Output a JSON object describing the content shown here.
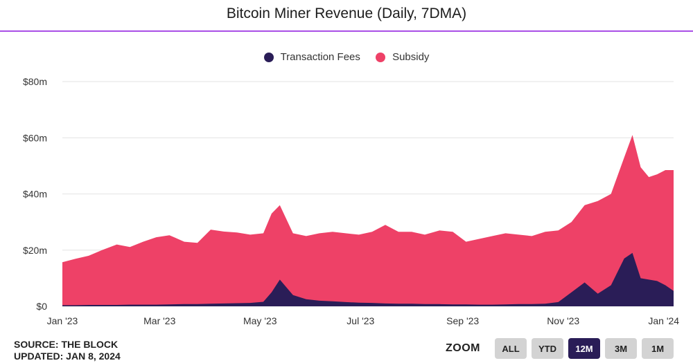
{
  "title": "Bitcoin Miner Revenue (Daily, 7DMA)",
  "footer": {
    "source": "SOURCE: THE BLOCK",
    "updated": "UPDATED: JAN 8, 2024"
  },
  "zoom": {
    "label": "ZOOM",
    "buttons": [
      "ALL",
      "YTD",
      "12M",
      "3M",
      "1M"
    ],
    "active": "12M"
  },
  "colors": {
    "fees": "#2a1d57",
    "subsidy": "#ee4167",
    "grid": "#e3e3e3",
    "title_rule": "#a94ee6"
  },
  "chart_data": {
    "type": "area",
    "stacked": true,
    "title": "Bitcoin Miner Revenue (Daily, 7DMA)",
    "x_ticks": [
      "Jan '23",
      "Mar '23",
      "May '23",
      "Jul '23",
      "Sep '23",
      "Nov '23",
      "Jan '24"
    ],
    "y_ticks": [
      "$0",
      "$20m",
      "$40m",
      "$60m",
      "$80m"
    ],
    "ylim": [
      0,
      80
    ],
    "y_unit": "USD millions",
    "grid": true,
    "legend_position": "top-center",
    "dates": [
      "2023-01-01",
      "2023-01-09",
      "2023-01-17",
      "2023-01-25",
      "2023-02-03",
      "2023-02-11",
      "2023-02-19",
      "2023-02-27",
      "2023-03-07",
      "2023-03-16",
      "2023-03-24",
      "2023-04-01",
      "2023-04-09",
      "2023-04-17",
      "2023-04-25",
      "2023-05-03",
      "2023-05-08",
      "2023-05-13",
      "2023-05-21",
      "2023-05-29",
      "2023-06-06",
      "2023-06-14",
      "2023-06-22",
      "2023-06-30",
      "2023-07-08",
      "2023-07-16",
      "2023-07-24",
      "2023-08-01",
      "2023-08-09",
      "2023-08-18",
      "2023-08-26",
      "2023-09-03",
      "2023-09-11",
      "2023-09-19",
      "2023-09-27",
      "2023-10-05",
      "2023-10-13",
      "2023-10-21",
      "2023-10-29",
      "2023-11-06",
      "2023-11-14",
      "2023-11-22",
      "2023-11-30",
      "2023-12-08",
      "2023-12-13",
      "2023-12-18",
      "2023-12-23",
      "2023-12-28",
      "2024-01-02",
      "2024-01-07"
    ],
    "series": [
      {
        "name": "Transaction Fees",
        "values": [
          0.4,
          0.4,
          0.5,
          0.5,
          0.5,
          0.6,
          0.6,
          0.6,
          0.7,
          0.8,
          0.8,
          0.9,
          1.0,
          1.1,
          1.2,
          1.6,
          5.0,
          9.5,
          4.0,
          2.5,
          2.0,
          1.8,
          1.5,
          1.3,
          1.2,
          1.0,
          0.9,
          0.9,
          0.8,
          0.8,
          0.7,
          0.7,
          0.6,
          0.6,
          0.7,
          0.8,
          0.8,
          0.9,
          1.5,
          5.0,
          8.5,
          4.5,
          7.5,
          17.0,
          19.0,
          10.0,
          9.5,
          9.0,
          7.5,
          5.5
        ]
      },
      {
        "name": "Subsidy",
        "values": [
          15.3,
          16.5,
          17.5,
          19.5,
          21.5,
          20.5,
          22.4,
          24.0,
          24.6,
          22.2,
          21.8,
          26.4,
          25.6,
          25.2,
          24.3,
          24.4,
          28.0,
          26.5,
          22.0,
          22.5,
          24.0,
          24.7,
          24.5,
          24.2,
          25.3,
          28.0,
          25.6,
          25.6,
          24.7,
          26.2,
          25.8,
          22.3,
          23.4,
          24.4,
          25.3,
          24.7,
          24.2,
          25.6,
          25.5,
          25.0,
          27.5,
          33.0,
          32.5,
          36.0,
          42.0,
          39.5,
          36.5,
          38.0,
          41.0,
          43.0
        ]
      }
    ]
  }
}
